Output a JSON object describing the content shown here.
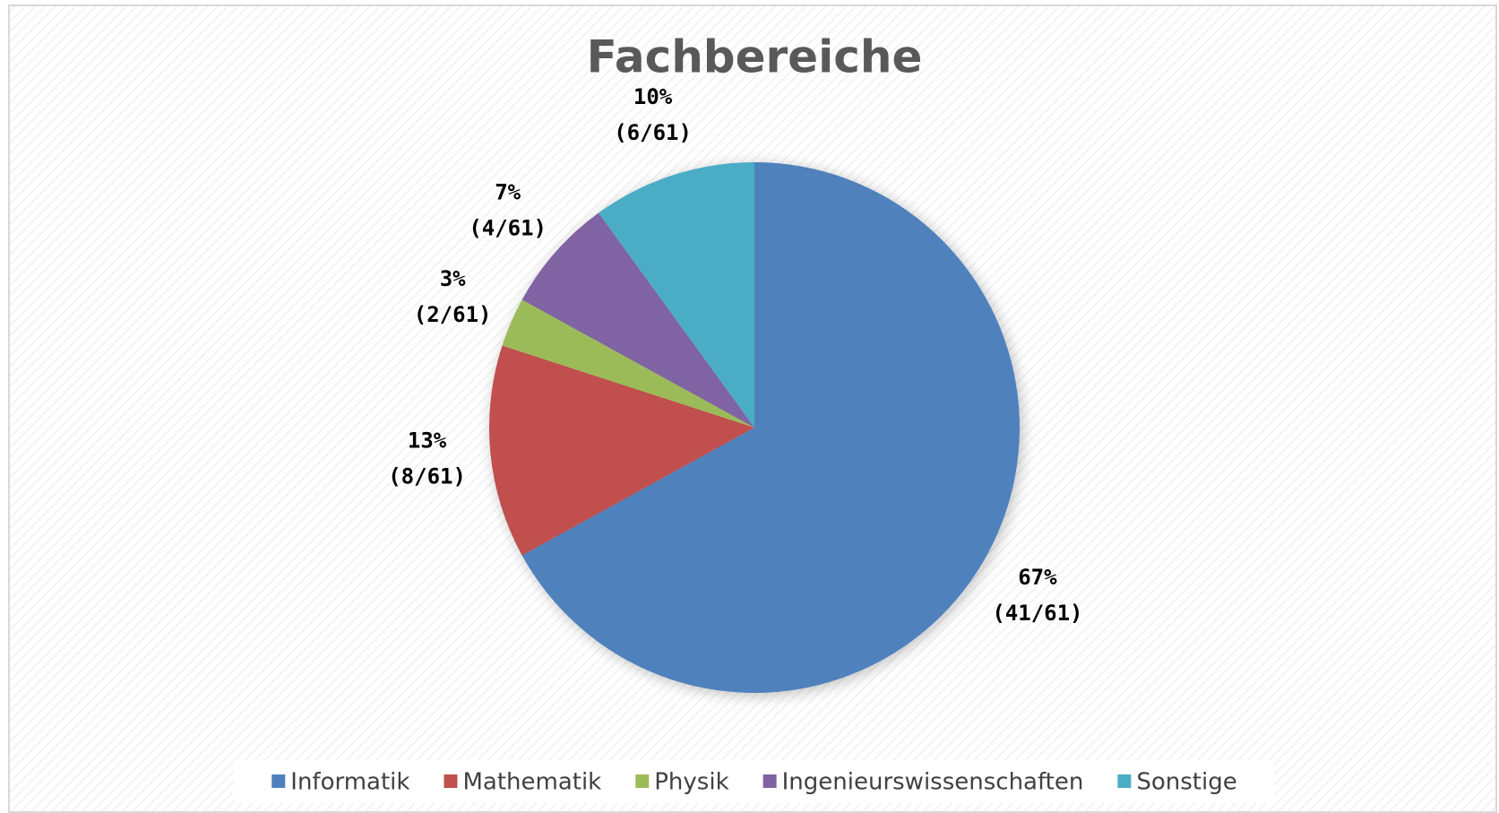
{
  "chart_data": {
    "type": "pie",
    "title": "Fachbereiche",
    "categories": [
      "Informatik",
      "Mathematik",
      "Physik",
      "Ingenieurswissenschaften",
      "Sonstige"
    ],
    "values": [
      67,
      13,
      3,
      7,
      10
    ],
    "value_labels": [
      "67%",
      "13%",
      "3%",
      "7%",
      "10%"
    ],
    "count_labels": [
      "(41/61)",
      "(8/61)",
      "(2/61)",
      "(4/61)",
      "(6/61)"
    ],
    "colors": [
      "#4f81bd",
      "#c0504d",
      "#9bbb59",
      "#8064a2",
      "#4bacc6"
    ],
    "legend": "bottom"
  }
}
